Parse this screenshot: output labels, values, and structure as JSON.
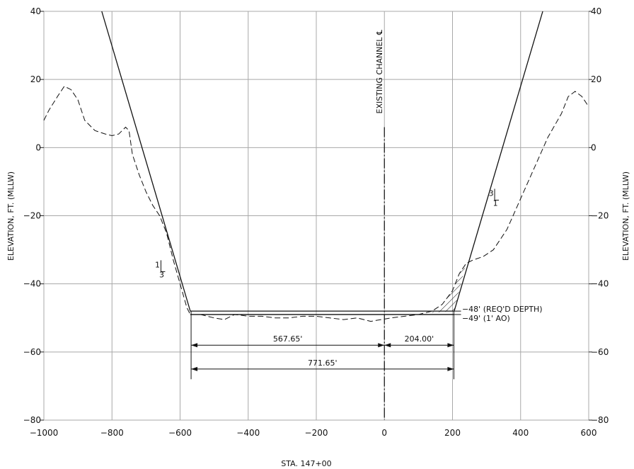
{
  "chart_data": {
    "type": "line",
    "xlabel": "STA. 147+00",
    "ylabel": "ELEVATION, FT. (MLLW)",
    "xlim": [
      -1000,
      600
    ],
    "ylim": [
      -80,
      40
    ],
    "grid": true,
    "x_ticks": [
      -1000,
      -800,
      -600,
      -400,
      -200,
      0,
      200,
      400,
      600
    ],
    "y_ticks": [
      -80,
      -60,
      -40,
      -20,
      0,
      20,
      40
    ],
    "x_tick_labels": [
      "−1000",
      "−800",
      "−600",
      "−400",
      "−200",
      "0",
      "200",
      "400",
      "600"
    ],
    "y_tick_labels": [
      "−80",
      "−60",
      "−40",
      "−20",
      "0",
      "20",
      "40"
    ],
    "centerline_label": "EXISTING CHANNEL ℄",
    "series": [
      {
        "style": "solid",
        "x": [
          -830,
          -570,
          205,
          465
        ],
        "y": [
          40,
          -48,
          -48,
          40
        ]
      },
      {
        "style": "solid",
        "x": [
          -570,
          205
        ],
        "y": [
          -49,
          -49
        ]
      },
      {
        "style": "dashed",
        "x": [
          -1000,
          -985,
          -960,
          -940,
          -920,
          -900,
          -880,
          -850,
          -820,
          -800,
          -780,
          -760,
          -750,
          -740,
          -720,
          -700,
          -680,
          -660,
          -640,
          -620,
          -600,
          -580,
          -570,
          -540,
          -500,
          -470,
          -440,
          -400,
          -360,
          -320,
          -280,
          -240,
          -200,
          -160,
          -120,
          -80,
          -40,
          -10,
          20,
          60,
          100,
          140,
          170,
          200,
          220,
          240,
          260,
          290,
          320,
          360,
          400,
          440,
          480,
          520,
          540,
          560,
          580,
          600
        ],
        "y": [
          8,
          11,
          15,
          18,
          17,
          14,
          8,
          5,
          4,
          3.5,
          4,
          6,
          5,
          -2,
          -8,
          -13,
          -17,
          -20,
          -25,
          -33,
          -40,
          -47,
          -49,
          -49,
          -50,
          -50.5,
          -49,
          -49.5,
          -49.5,
          -50,
          -50,
          -49.5,
          -49.5,
          -50,
          -50.5,
          -50,
          -51,
          -50.5,
          -50,
          -49.5,
          -49,
          -48,
          -46,
          -42,
          -37,
          -34,
          -33,
          -32,
          -30,
          -24,
          -15,
          -6,
          3,
          10,
          15,
          16.5,
          15,
          12
        ]
      }
    ],
    "slopes": [
      {
        "text": "1",
        "text2": "3",
        "x": -650,
        "y": -36,
        "side": "left"
      },
      {
        "text": "1",
        "text2": "3",
        "x": 330,
        "y": -15,
        "side": "right"
      }
    ],
    "dimensions": [
      {
        "label": "567.65'",
        "x1": -567.65,
        "x2": 0,
        "y": -58
      },
      {
        "label": "204.00'",
        "x1": 0,
        "x2": 204,
        "y": -58
      },
      {
        "label": "771.65'",
        "x1": -567.65,
        "x2": 204,
        "y": -65
      }
    ],
    "annotations": [
      {
        "text": "−48' (REQ'D DEPTH)",
        "y": -48
      },
      {
        "text": "−49' (1' AO)",
        "y": -49
      }
    ]
  }
}
